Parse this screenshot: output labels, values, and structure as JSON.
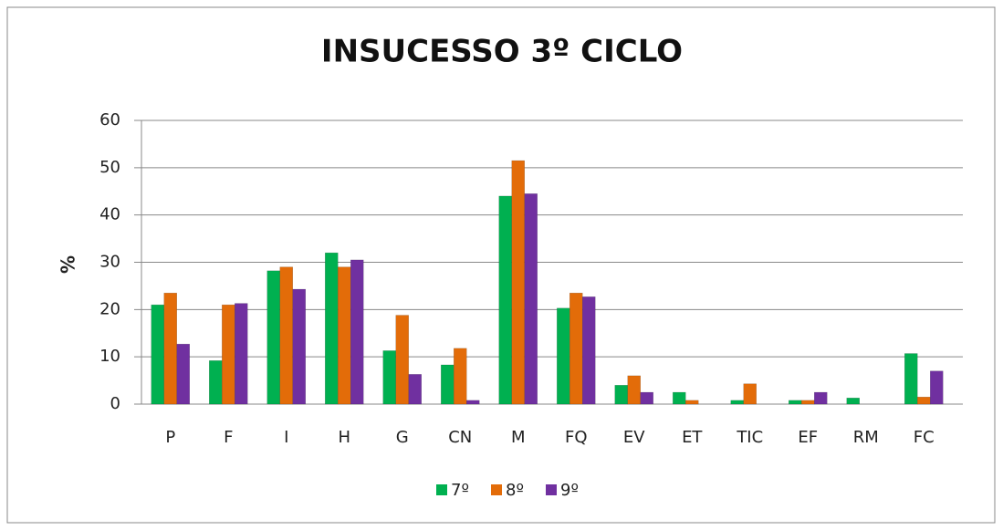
{
  "chart_data": {
    "type": "bar",
    "title": "INSUCESSO 3º CICLO",
    "y_label": "%",
    "categories": [
      "P",
      "F",
      "I",
      "H",
      "G",
      "CN",
      "M",
      "FQ",
      "EV",
      "ET",
      "TIC",
      "EF",
      "RM",
      "FC"
    ],
    "series": [
      {
        "name": "7º",
        "color": "#00b050",
        "values": [
          21,
          9.2,
          28.2,
          32,
          11.3,
          8.3,
          44,
          20.3,
          4,
          2.5,
          0.8,
          0.8,
          1.3,
          10.7
        ]
      },
      {
        "name": "8º",
        "color": "#e36c09",
        "values": [
          23.5,
          21,
          29,
          29,
          18.8,
          11.8,
          51.5,
          23.5,
          6,
          0.8,
          4.3,
          0.8,
          0,
          1.5
        ]
      },
      {
        "name": "9º",
        "color": "#7030a0",
        "values": [
          12.7,
          21.3,
          24.3,
          30.5,
          6.3,
          0.8,
          44.5,
          22.7,
          2.5,
          0,
          0,
          2.5,
          0,
          7
        ]
      }
    ],
    "ylim": [
      0,
      60
    ],
    "yticks": [
      0,
      10,
      20,
      30,
      40,
      50,
      60
    ],
    "grid": true,
    "legend": "bottom"
  }
}
